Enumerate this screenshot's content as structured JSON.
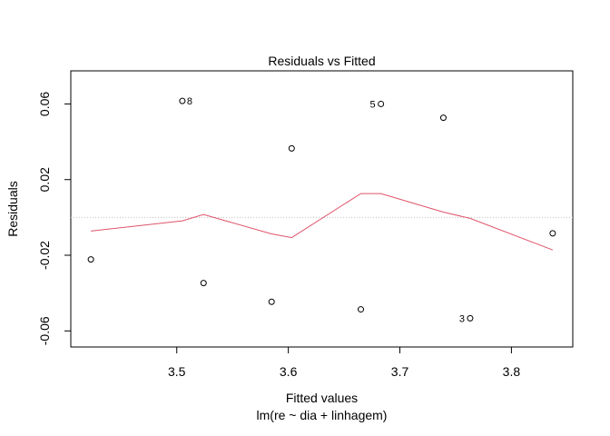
{
  "chart_data": {
    "type": "scatter",
    "title": "Residuals vs Fitted",
    "xlabel": "Fitted values",
    "subtitle": "lm(re ~ dia + linhagem)",
    "ylabel": "Residuals",
    "xlim": [
      3.405,
      3.855
    ],
    "ylim": [
      -0.0685,
      0.0775
    ],
    "xticks": [
      3.5,
      3.6,
      3.7,
      3.8
    ],
    "xtick_labels": [
      "3.5",
      "3.6",
      "3.7",
      "3.8"
    ],
    "yticks": [
      -0.06,
      -0.02,
      0.02,
      0.06
    ],
    "ytick_labels": [
      "-0.06",
      "-0.02",
      "0.02",
      "0.06"
    ],
    "reference_line_y": 0,
    "points": [
      {
        "x": 3.423,
        "y": -0.0222
      },
      {
        "x": 3.505,
        "y": 0.0616,
        "label": "8",
        "label_side": "right"
      },
      {
        "x": 3.524,
        "y": -0.0347
      },
      {
        "x": 3.585,
        "y": -0.0446
      },
      {
        "x": 3.603,
        "y": 0.0365
      },
      {
        "x": 3.665,
        "y": -0.0486
      },
      {
        "x": 3.683,
        "y": 0.06,
        "label": "5",
        "label_side": "left"
      },
      {
        "x": 3.739,
        "y": 0.0527
      },
      {
        "x": 3.763,
        "y": -0.0533,
        "label": "3",
        "label_side": "left"
      },
      {
        "x": 3.837,
        "y": -0.0084
      }
    ],
    "smooth_line": {
      "color": "#DF536B",
      "x": [
        3.423,
        3.505,
        3.524,
        3.585,
        3.603,
        3.665,
        3.683,
        3.739,
        3.763,
        3.837
      ],
      "y": [
        -0.0072,
        -0.0018,
        0.0015,
        -0.0087,
        -0.0107,
        0.0126,
        0.0126,
        0.0028,
        -0.0005,
        -0.0172
      ]
    },
    "colors": {
      "points": "#000000",
      "reference_line": "#BEBEBE",
      "axes": "#000000"
    }
  }
}
